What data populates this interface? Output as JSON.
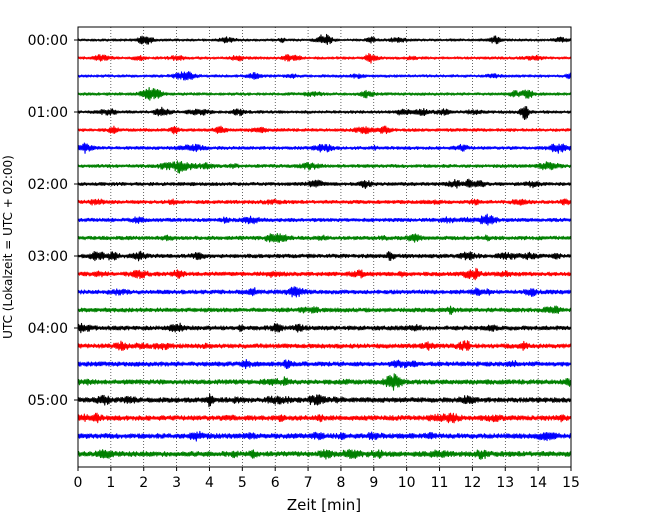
{
  "chart_data": {
    "type": "line",
    "title": "",
    "xlabel": "Zeit  [min]",
    "ylabel": "UTC (Lokalzeit = UTC + 02:00)",
    "xlim": [
      0,
      15
    ],
    "x_ticks": [
      "0",
      "1",
      "2",
      "3",
      "4",
      "5",
      "6",
      "7",
      "8",
      "9",
      "10",
      "11",
      "12",
      "13",
      "14",
      "15"
    ],
    "y_tick_labels": [
      "00:00",
      "01:00",
      "02:00",
      "03:00",
      "04:00",
      "05:00"
    ],
    "grid": "vertical dotted lines at each minute",
    "legend": "none",
    "trace_interval_min": 15,
    "trace_count": 24,
    "color_cycle": [
      "#000000",
      "#ff0000",
      "#0000ff",
      "#008000"
    ],
    "notable_events": [
      {
        "trace_start": "01:00",
        "minute": 13.6,
        "relative_amplitude": "high"
      },
      {
        "trace_start": "02:00",
        "minute": 11.9,
        "relative_amplitude": "medium"
      },
      {
        "trace_start": "05:00",
        "minute": 4.0,
        "relative_amplitude": "medium"
      }
    ]
  }
}
